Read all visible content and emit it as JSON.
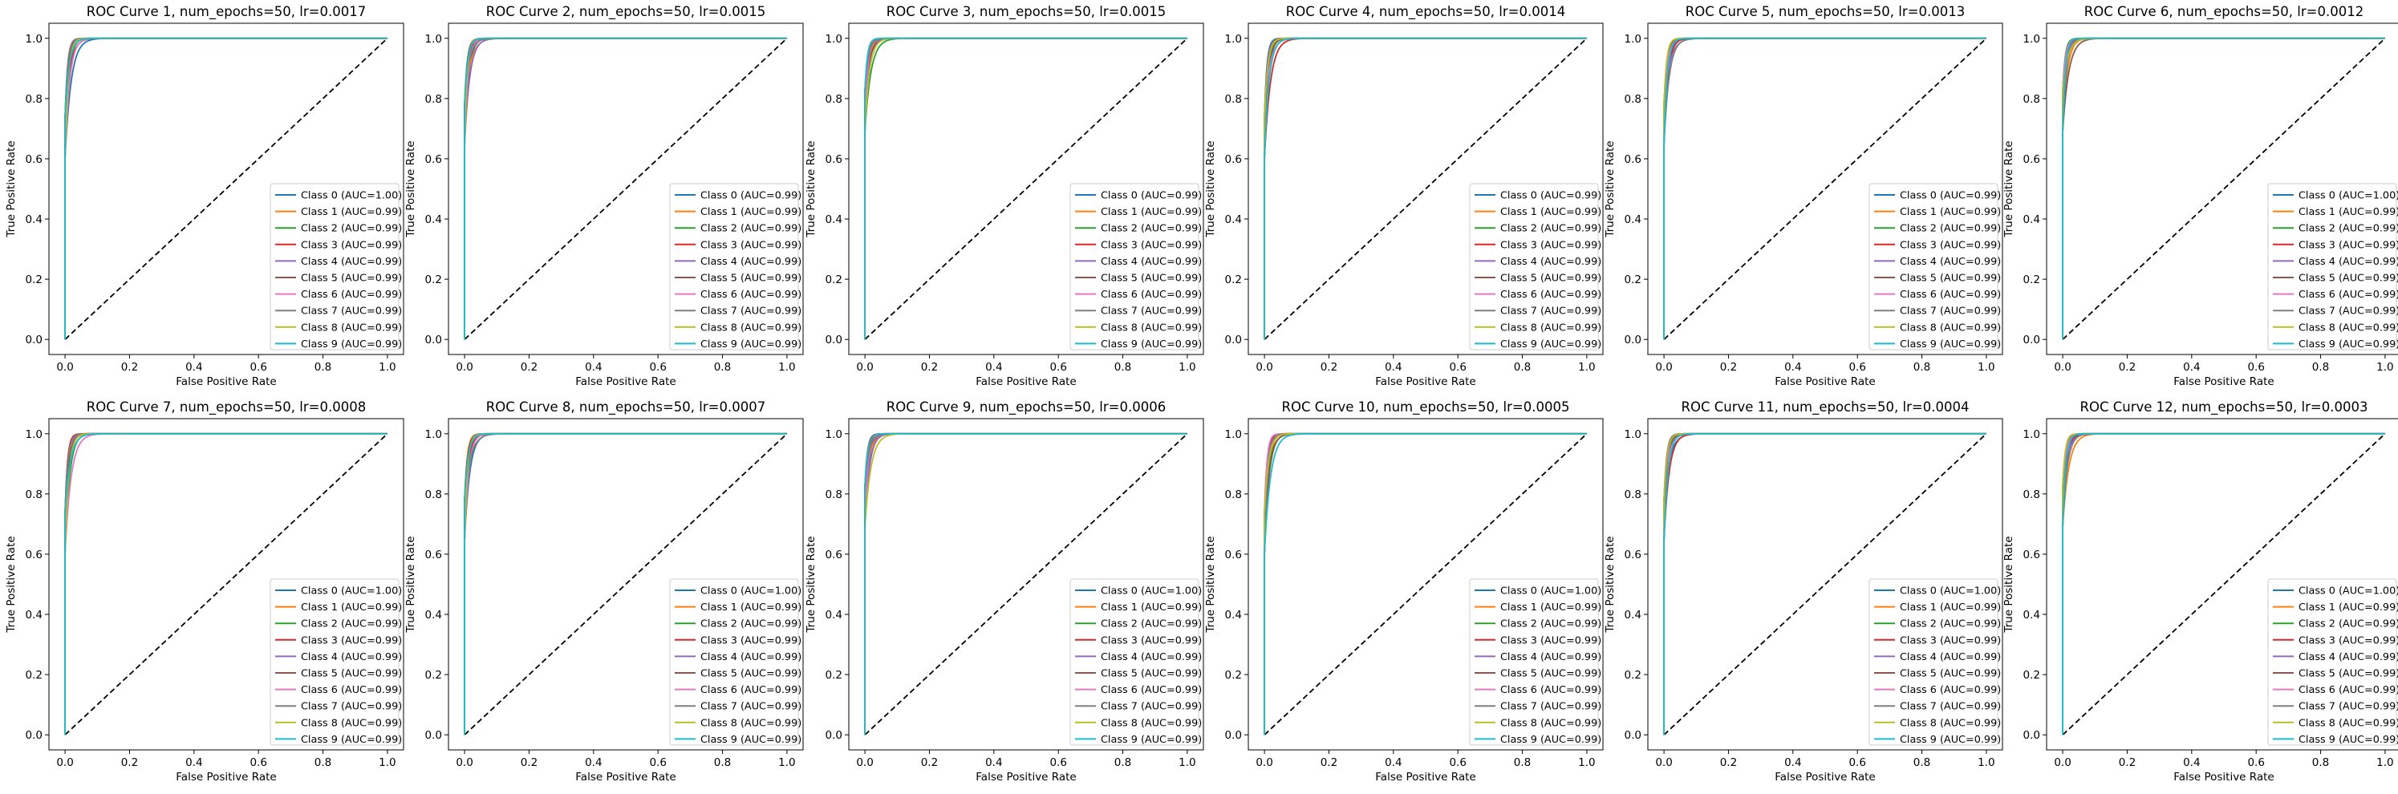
{
  "figure": {
    "x_label": "False Positive Rate",
    "y_label": "True Positive Rate",
    "tick_labels": [
      "0.0",
      "0.2",
      "0.4",
      "0.6",
      "0.8",
      "1.0"
    ],
    "class_colors": [
      "#1f77b4",
      "#ff7f0e",
      "#2ca02c",
      "#d62728",
      "#9467bd",
      "#8c564b",
      "#e377c2",
      "#7f7f7f",
      "#bcbd22",
      "#17becf"
    ],
    "diagonal_color": "#000000"
  },
  "chart_data": [
    {
      "type": "line",
      "title": "ROC Curve 1, num_epochs=50, lr=0.0017",
      "xlabel": "False Positive Rate",
      "ylabel": "True Positive Rate",
      "xlim": [
        0,
        1
      ],
      "ylim": [
        0,
        1
      ],
      "legend_position": "lower-right",
      "grid": false,
      "series_names": [
        "Class 0",
        "Class 1",
        "Class 2",
        "Class 3",
        "Class 4",
        "Class 5",
        "Class 6",
        "Class 7",
        "Class 8",
        "Class 9"
      ],
      "auc": [
        "1.00",
        "0.99",
        "0.99",
        "0.99",
        "0.99",
        "0.99",
        "0.99",
        "0.99",
        "0.99",
        "0.99"
      ]
    },
    {
      "type": "line",
      "title": "ROC Curve 2, num_epochs=50, lr=0.0015",
      "xlabel": "False Positive Rate",
      "ylabel": "True Positive Rate",
      "xlim": [
        0,
        1
      ],
      "ylim": [
        0,
        1
      ],
      "legend_position": "lower-right",
      "grid": false,
      "series_names": [
        "Class 0",
        "Class 1",
        "Class 2",
        "Class 3",
        "Class 4",
        "Class 5",
        "Class 6",
        "Class 7",
        "Class 8",
        "Class 9"
      ],
      "auc": [
        "0.99",
        "0.99",
        "0.99",
        "0.99",
        "0.99",
        "0.99",
        "0.99",
        "0.99",
        "0.99",
        "0.99"
      ]
    },
    {
      "type": "line",
      "title": "ROC Curve 3, num_epochs=50, lr=0.0015",
      "xlabel": "False Positive Rate",
      "ylabel": "True Positive Rate",
      "xlim": [
        0,
        1
      ],
      "ylim": [
        0,
        1
      ],
      "legend_position": "lower-right",
      "grid": false,
      "series_names": [
        "Class 0",
        "Class 1",
        "Class 2",
        "Class 3",
        "Class 4",
        "Class 5",
        "Class 6",
        "Class 7",
        "Class 8",
        "Class 9"
      ],
      "auc": [
        "0.99",
        "0.99",
        "0.99",
        "0.99",
        "0.99",
        "0.99",
        "0.99",
        "0.99",
        "0.99",
        "0.99"
      ]
    },
    {
      "type": "line",
      "title": "ROC Curve 4, num_epochs=50, lr=0.0014",
      "xlabel": "False Positive Rate",
      "ylabel": "True Positive Rate",
      "xlim": [
        0,
        1
      ],
      "ylim": [
        0,
        1
      ],
      "legend_position": "lower-right",
      "grid": false,
      "series_names": [
        "Class 0",
        "Class 1",
        "Class 2",
        "Class 3",
        "Class 4",
        "Class 5",
        "Class 6",
        "Class 7",
        "Class 8",
        "Class 9"
      ],
      "auc": [
        "0.99",
        "0.99",
        "0.99",
        "0.99",
        "0.99",
        "0.99",
        "0.99",
        "0.99",
        "0.99",
        "0.99"
      ]
    },
    {
      "type": "line",
      "title": "ROC Curve 5, num_epochs=50, lr=0.0013",
      "xlabel": "False Positive Rate",
      "ylabel": "True Positive Rate",
      "xlim": [
        0,
        1
      ],
      "ylim": [
        0,
        1
      ],
      "legend_position": "lower-right",
      "grid": false,
      "series_names": [
        "Class 0",
        "Class 1",
        "Class 2",
        "Class 3",
        "Class 4",
        "Class 5",
        "Class 6",
        "Class 7",
        "Class 8",
        "Class 9"
      ],
      "auc": [
        "0.99",
        "0.99",
        "0.99",
        "0.99",
        "0.99",
        "0.99",
        "0.99",
        "0.99",
        "0.99",
        "0.99"
      ]
    },
    {
      "type": "line",
      "title": "ROC Curve 6, num_epochs=50, lr=0.0012",
      "xlabel": "False Positive Rate",
      "ylabel": "True Positive Rate",
      "xlim": [
        0,
        1
      ],
      "ylim": [
        0,
        1
      ],
      "legend_position": "lower-right",
      "grid": false,
      "series_names": [
        "Class 0",
        "Class 1",
        "Class 2",
        "Class 3",
        "Class 4",
        "Class 5",
        "Class 6",
        "Class 7",
        "Class 8",
        "Class 9"
      ],
      "auc": [
        "1.00",
        "0.99",
        "0.99",
        "0.99",
        "0.99",
        "0.99",
        "0.99",
        "0.99",
        "0.99",
        "0.99"
      ]
    },
    {
      "type": "line",
      "title": "ROC Curve 7, num_epochs=50, lr=0.0008",
      "xlabel": "False Positive Rate",
      "ylabel": "True Positive Rate",
      "xlim": [
        0,
        1
      ],
      "ylim": [
        0,
        1
      ],
      "legend_position": "lower-right",
      "grid": false,
      "series_names": [
        "Class 0",
        "Class 1",
        "Class 2",
        "Class 3",
        "Class 4",
        "Class 5",
        "Class 6",
        "Class 7",
        "Class 8",
        "Class 9"
      ],
      "auc": [
        "1.00",
        "0.99",
        "0.99",
        "0.99",
        "0.99",
        "0.99",
        "0.99",
        "0.99",
        "0.99",
        "0.99"
      ]
    },
    {
      "type": "line",
      "title": "ROC Curve 8, num_epochs=50, lr=0.0007",
      "xlabel": "False Positive Rate",
      "ylabel": "True Positive Rate",
      "xlim": [
        0,
        1
      ],
      "ylim": [
        0,
        1
      ],
      "legend_position": "lower-right",
      "grid": false,
      "series_names": [
        "Class 0",
        "Class 1",
        "Class 2",
        "Class 3",
        "Class 4",
        "Class 5",
        "Class 6",
        "Class 7",
        "Class 8",
        "Class 9"
      ],
      "auc": [
        "1.00",
        "0.99",
        "0.99",
        "0.99",
        "0.99",
        "0.99",
        "0.99",
        "0.99",
        "0.99",
        "0.99"
      ]
    },
    {
      "type": "line",
      "title": "ROC Curve 9, num_epochs=50, lr=0.0006",
      "xlabel": "False Positive Rate",
      "ylabel": "True Positive Rate",
      "xlim": [
        0,
        1
      ],
      "ylim": [
        0,
        1
      ],
      "legend_position": "lower-right",
      "grid": false,
      "series_names": [
        "Class 0",
        "Class 1",
        "Class 2",
        "Class 3",
        "Class 4",
        "Class 5",
        "Class 6",
        "Class 7",
        "Class 8",
        "Class 9"
      ],
      "auc": [
        "1.00",
        "0.99",
        "0.99",
        "0.99",
        "0.99",
        "0.99",
        "0.99",
        "0.99",
        "0.99",
        "0.99"
      ]
    },
    {
      "type": "line",
      "title": "ROC Curve 10, num_epochs=50, lr=0.0005",
      "xlabel": "False Positive Rate",
      "ylabel": "True Positive Rate",
      "xlim": [
        0,
        1
      ],
      "ylim": [
        0,
        1
      ],
      "legend_position": "lower-right",
      "grid": false,
      "series_names": [
        "Class 0",
        "Class 1",
        "Class 2",
        "Class 3",
        "Class 4",
        "Class 5",
        "Class 6",
        "Class 7",
        "Class 8",
        "Class 9"
      ],
      "auc": [
        "1.00",
        "0.99",
        "0.99",
        "0.99",
        "0.99",
        "0.99",
        "0.99",
        "0.99",
        "0.99",
        "0.99"
      ]
    },
    {
      "type": "line",
      "title": "ROC Curve 11, num_epochs=50, lr=0.0004",
      "xlabel": "False Positive Rate",
      "ylabel": "True Positive Rate",
      "xlim": [
        0,
        1
      ],
      "ylim": [
        0,
        1
      ],
      "legend_position": "lower-right",
      "grid": false,
      "series_names": [
        "Class 0",
        "Class 1",
        "Class 2",
        "Class 3",
        "Class 4",
        "Class 5",
        "Class 6",
        "Class 7",
        "Class 8",
        "Class 9"
      ],
      "auc": [
        "1.00",
        "0.99",
        "0.99",
        "0.99",
        "0.99",
        "0.99",
        "0.99",
        "0.99",
        "0.99",
        "0.99"
      ]
    },
    {
      "type": "line",
      "title": "ROC Curve 12, num_epochs=50, lr=0.0003",
      "xlabel": "False Positive Rate",
      "ylabel": "True Positive Rate",
      "xlim": [
        0,
        1
      ],
      "ylim": [
        0,
        1
      ],
      "legend_position": "lower-right",
      "grid": false,
      "series_names": [
        "Class 0",
        "Class 1",
        "Class 2",
        "Class 3",
        "Class 4",
        "Class 5",
        "Class 6",
        "Class 7",
        "Class 8",
        "Class 9"
      ],
      "auc": [
        "1.00",
        "0.99",
        "0.99",
        "0.99",
        "0.99",
        "0.99",
        "0.99",
        "0.99",
        "0.99",
        "0.99"
      ]
    }
  ]
}
